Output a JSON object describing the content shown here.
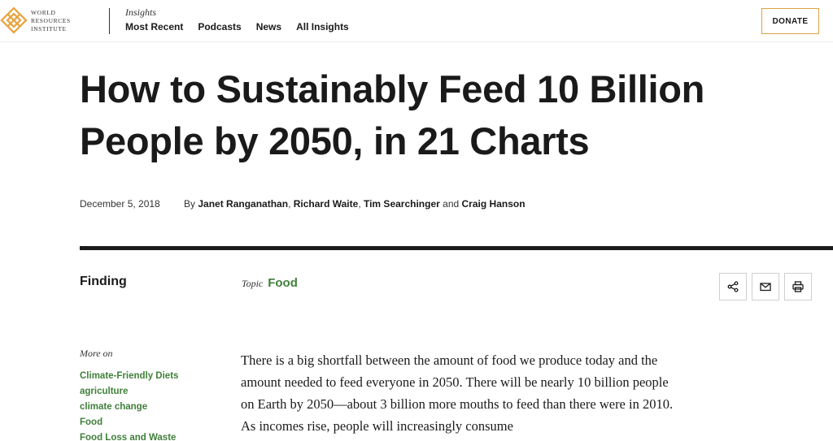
{
  "header": {
    "logo": {
      "line1": "WORLD",
      "line2": "RESOURCES",
      "line3": "INSTITUTE",
      "color": "#e8a13a"
    },
    "section_label": "Insights",
    "nav": [
      {
        "label": "Most Recent"
      },
      {
        "label": "Podcasts"
      },
      {
        "label": "News"
      },
      {
        "label": "All Insights"
      }
    ],
    "donate_label": "DONATE",
    "accent_color": "#d9a441"
  },
  "article": {
    "title": "How to Sustainably Feed 10 Billion People by 2050, in 21 Charts",
    "date": "December 5, 2018",
    "by": "By",
    "authors": [
      "Janet Ranganathan",
      "Richard Waite",
      "Tim Searchinger",
      "Craig Hanson"
    ],
    "author_sep1": ", ",
    "author_sep2": ", ",
    "author_and": " and ",
    "type": "Finding",
    "topic_label": "Topic",
    "topic": "Food",
    "link_color": "#3f7f3a",
    "tools": [
      {
        "icon": "share-icon"
      },
      {
        "icon": "mail-icon"
      },
      {
        "icon": "print-icon"
      }
    ],
    "more_on_label": "More on",
    "tags": [
      "Climate-Friendly Diets",
      "agriculture",
      "climate change",
      "Food",
      "Food Loss and Waste"
    ],
    "body": "There is a big shortfall between the amount of food we produce today and the amount needed to feed everyone in 2050. There will be nearly 10 billion people on Earth by 2050—about 3 billion more mouths to feed than there were in 2010. As incomes rise, people will increasingly consume"
  }
}
